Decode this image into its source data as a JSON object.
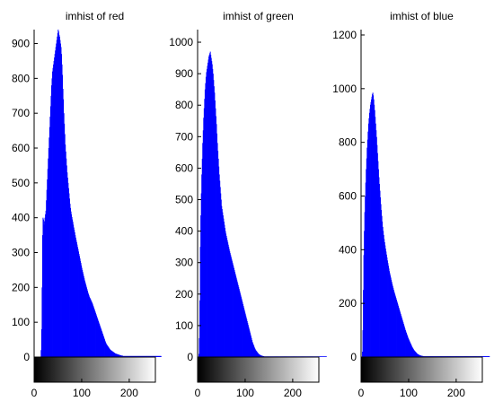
{
  "figure": {
    "background": "#ffffff",
    "bar_color": "#0000ff"
  },
  "chart_data": [
    {
      "type": "bar",
      "title": "imhist of red",
      "xlabel": "",
      "ylabel": "",
      "xlim": [
        0,
        255
      ],
      "ylim": [
        0,
        940
      ],
      "xticks": [
        0,
        100,
        200
      ],
      "yticks": [
        0,
        100,
        200,
        300,
        400,
        500,
        600,
        700,
        800,
        900
      ],
      "grid": false,
      "colorbar": "grayscale gradient 0 (black) to 255 (white) below x-axis",
      "bar_color": "#0000ff",
      "series": [
        {
          "x_range": [
            0,
            255
          ],
          "bin_width": 1,
          "values": [
            0,
            0,
            0,
            0,
            0,
            0,
            0,
            0,
            0,
            0,
            0,
            0,
            0,
            0,
            20,
            80,
            200,
            350,
            400,
            395,
            380,
            390,
            400,
            410,
            420,
            450,
            480,
            510,
            540,
            570,
            600,
            630,
            660,
            690,
            720,
            750,
            780,
            800,
            820,
            830,
            840,
            850,
            860,
            870,
            880,
            890,
            900,
            910,
            920,
            930,
            940,
            935,
            925,
            920,
            910,
            900,
            890,
            870,
            840,
            810,
            770,
            740,
            700,
            670,
            640,
            610,
            590,
            570,
            550,
            530,
            515,
            500,
            485,
            470,
            455,
            440,
            428,
            418,
            410,
            402,
            395,
            388,
            380,
            372,
            365,
            358,
            350,
            343,
            336,
            330,
            323,
            316,
            310,
            303,
            296,
            290,
            283,
            276,
            270,
            263,
            256,
            250,
            244,
            238,
            232,
            226,
            220,
            215,
            210,
            205,
            200,
            195,
            190,
            185,
            181,
            177,
            173,
            170,
            167,
            164,
            161,
            158,
            155,
            151,
            147,
            143,
            139,
            135,
            131,
            127,
            123,
            119,
            115,
            111,
            107,
            103,
            99,
            95,
            91,
            87,
            83,
            79,
            75,
            71,
            67,
            63,
            59,
            55,
            51,
            47,
            43,
            40,
            37,
            35,
            33,
            31,
            29,
            27,
            25,
            23,
            21,
            20,
            19,
            18,
            17,
            16,
            15,
            14,
            13,
            12,
            11,
            10,
            10,
            9,
            9,
            8,
            8,
            7,
            7,
            6,
            6,
            5,
            5,
            5,
            4,
            4,
            4,
            3,
            3,
            3,
            3,
            3,
            3,
            3,
            3,
            3,
            3,
            3,
            3,
            3,
            3,
            3,
            3,
            3,
            3,
            3,
            3,
            3,
            3,
            3,
            3,
            3,
            3,
            3,
            3,
            3,
            3,
            3,
            3,
            3,
            3,
            3,
            3,
            3,
            3,
            3,
            3,
            3,
            3,
            3,
            3,
            3,
            3,
            3,
            3,
            3,
            3,
            3,
            3,
            3,
            3,
            3,
            3,
            3,
            3,
            3,
            3,
            3,
            3,
            3,
            3,
            3,
            3,
            3,
            3,
            3,
            3,
            3,
            3,
            3,
            3,
            3,
            3,
            3,
            3,
            3,
            3,
            3
          ]
        }
      ]
    },
    {
      "type": "bar",
      "title": "imhist of green",
      "xlabel": "",
      "ylabel": "",
      "xlim": [
        0,
        255
      ],
      "ylim": [
        0,
        1040
      ],
      "xticks": [
        0,
        100,
        200
      ],
      "yticks": [
        0,
        100,
        200,
        300,
        400,
        500,
        600,
        700,
        800,
        900,
        1000
      ],
      "grid": false,
      "colorbar": "grayscale gradient 0 (black) to 255 (white) below x-axis",
      "bar_color": "#0000ff",
      "series": [
        {
          "x_range": [
            0,
            255
          ],
          "bin_width": 1,
          "values": [
            0,
            0,
            10,
            60,
            180,
            350,
            450,
            520,
            580,
            630,
            680,
            720,
            760,
            790,
            820,
            850,
            870,
            890,
            905,
            915,
            925,
            935,
            945,
            955,
            960,
            965,
            970,
            960,
            950,
            940,
            930,
            915,
            900,
            880,
            860,
            840,
            815,
            790,
            765,
            740,
            710,
            680,
            655,
            630,
            605,
            580,
            560,
            540,
            520,
            500,
            480,
            470,
            460,
            450,
            440,
            430,
            420,
            410,
            400,
            392,
            385,
            378,
            371,
            364,
            357,
            350,
            343,
            336,
            330,
            324,
            318,
            312,
            306,
            300,
            294,
            288,
            282,
            276,
            270,
            264,
            258,
            252,
            246,
            240,
            234,
            228,
            222,
            216,
            210,
            204,
            198,
            192,
            186,
            180,
            174,
            168,
            162,
            156,
            150,
            144,
            138,
            132,
            126,
            120,
            114,
            108,
            102,
            96,
            90,
            84,
            78,
            72,
            66,
            60,
            54,
            48,
            44,
            40,
            36,
            32,
            28,
            25,
            22,
            20,
            18,
            16,
            14,
            12,
            10,
            9,
            8,
            7,
            6,
            5,
            5,
            4,
            4,
            3,
            3,
            3,
            2,
            2,
            2,
            2,
            2,
            2,
            2,
            2,
            2,
            2,
            2,
            2,
            2,
            2,
            2,
            2,
            2,
            2,
            2,
            2,
            2,
            2,
            2,
            2,
            2,
            2,
            2,
            2,
            2,
            2,
            2,
            2,
            2,
            2,
            2,
            2,
            2,
            2,
            2,
            2,
            2,
            2,
            2,
            2,
            2,
            2,
            2,
            2,
            2,
            2,
            2,
            2,
            2,
            2,
            2,
            2,
            2,
            2,
            2,
            2,
            2,
            2,
            2,
            2,
            2,
            2,
            2,
            2,
            2,
            2,
            2,
            2,
            2,
            2,
            2,
            2,
            2,
            2,
            2,
            2,
            2,
            2,
            2,
            2,
            2,
            2,
            2,
            2,
            2,
            2,
            2,
            2,
            2,
            2,
            2,
            2,
            2,
            2,
            2,
            2,
            2,
            2,
            2,
            2,
            2,
            2,
            2,
            2,
            2,
            2,
            2,
            2,
            2,
            2,
            2,
            2,
            2,
            2,
            2,
            2,
            2,
            2,
            2,
            2,
            2,
            2,
            2,
            2,
            2,
            2,
            2,
            2
          ]
        }
      ]
    },
    {
      "type": "bar",
      "title": "imhist of blue",
      "xlabel": "",
      "ylabel": "",
      "xlim": [
        0,
        255
      ],
      "ylim": [
        0,
        1220
      ],
      "xticks": [
        0,
        100,
        200
      ],
      "yticks": [
        0,
        200,
        400,
        600,
        800,
        1000,
        1200
      ],
      "grid": false,
      "colorbar": "grayscale gradient 0 (black) to 255 (white) below x-axis",
      "bar_color": "#0000ff",
      "series": [
        {
          "x_range": [
            0,
            255
          ],
          "bin_width": 1,
          "values": [
            0,
            0,
            20,
            100,
            250,
            380,
            470,
            540,
            600,
            650,
            700,
            740,
            780,
            810,
            840,
            870,
            890,
            910,
            925,
            940,
            950,
            960,
            970,
            980,
            985,
            975,
            960,
            940,
            920,
            895,
            870,
            845,
            820,
            790,
            760,
            730,
            700,
            670,
            645,
            620,
            595,
            570,
            548,
            526,
            505,
            485,
            470,
            455,
            440,
            428,
            416,
            404,
            393,
            382,
            371,
            360,
            350,
            340,
            330,
            320,
            312,
            304,
            296,
            288,
            280,
            272,
            265,
            258,
            251,
            244,
            238,
            232,
            226,
            220,
            214,
            208,
            202,
            196,
            190,
            184,
            178,
            172,
            166,
            160,
            154,
            148,
            142,
            136,
            130,
            124,
            118,
            112,
            106,
            100,
            95,
            90,
            85,
            80,
            75,
            70,
            66,
            62,
            58,
            54,
            50,
            46,
            42,
            38,
            35,
            32,
            29,
            26,
            24,
            22,
            20,
            18,
            16,
            14,
            12,
            11,
            10,
            9,
            8,
            7,
            6,
            6,
            5,
            5,
            4,
            4,
            4,
            3,
            3,
            3,
            3,
            3,
            3,
            3,
            3,
            3,
            3,
            3,
            3,
            3,
            3,
            3,
            3,
            3,
            3,
            3,
            3,
            3,
            3,
            3,
            3,
            3,
            3,
            3,
            3,
            3,
            3,
            3,
            3,
            3,
            3,
            3,
            3,
            3,
            3,
            3,
            3,
            3,
            3,
            3,
            3,
            3,
            3,
            3,
            3,
            3,
            3,
            3,
            3,
            3,
            3,
            3,
            3,
            3,
            3,
            3,
            3,
            3,
            3,
            3,
            3,
            3,
            3,
            3,
            3,
            3,
            3,
            3,
            3,
            3,
            3,
            3,
            3,
            3,
            3,
            3,
            3,
            3,
            3,
            3,
            3,
            3,
            3,
            3,
            3,
            3,
            3,
            3,
            3,
            3,
            3,
            3,
            3,
            3,
            3,
            3,
            3,
            3,
            3,
            3,
            3,
            3,
            3,
            3,
            3,
            3,
            3,
            3,
            3,
            3,
            3,
            3,
            3,
            3,
            3,
            3,
            3,
            3,
            3,
            3,
            3,
            3,
            3,
            3,
            3,
            3,
            3,
            3,
            3,
            3,
            3,
            3,
            3,
            3,
            3,
            3,
            3
          ]
        }
      ]
    }
  ]
}
